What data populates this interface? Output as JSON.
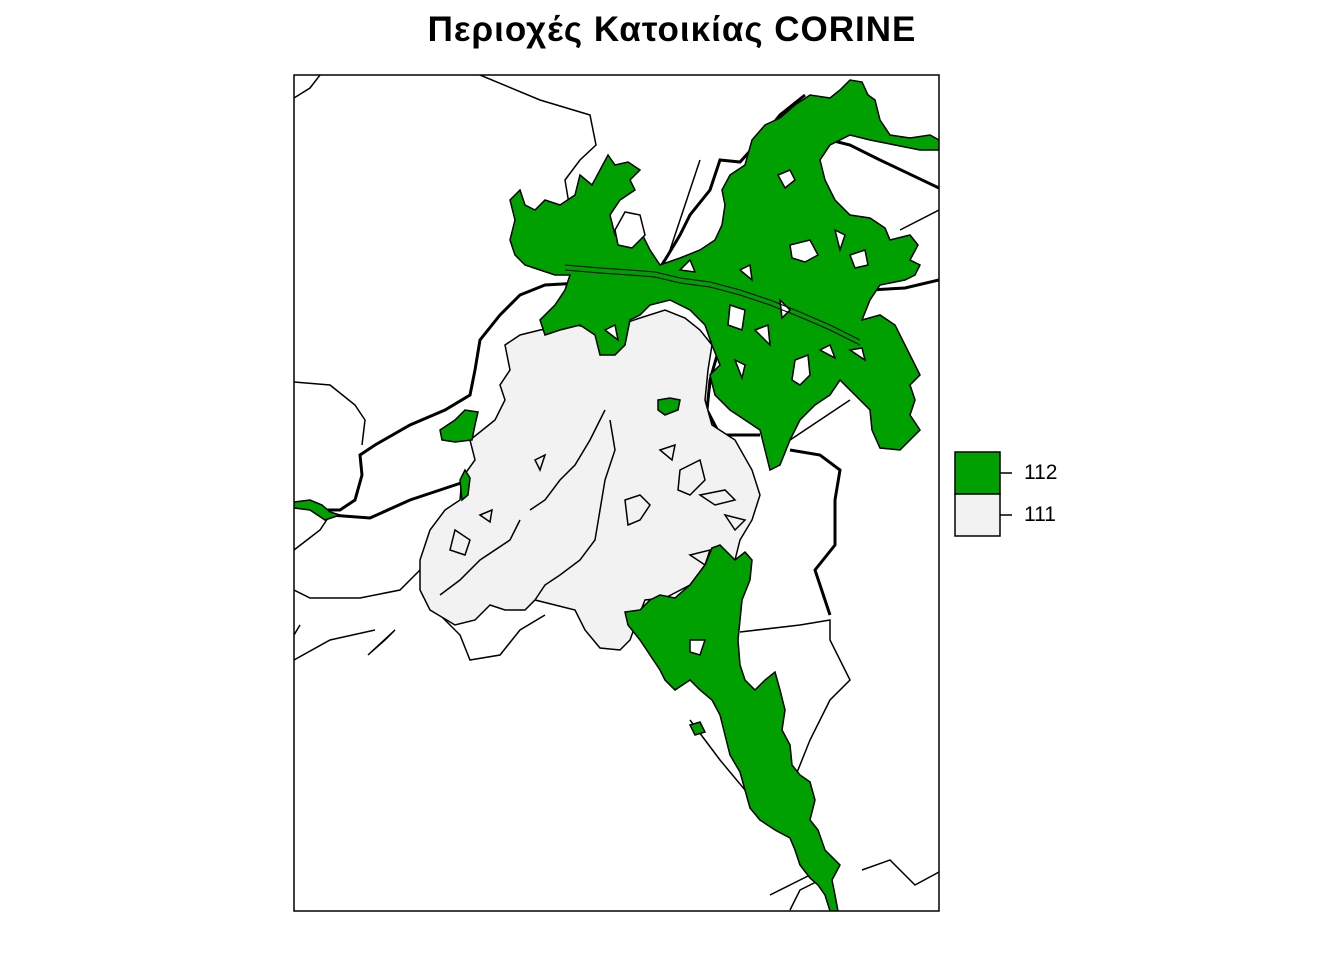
{
  "title": "Περιοχές Κατοικίας  CORINE",
  "legend": {
    "items": [
      {
        "label": "112",
        "color": "#00a000"
      },
      {
        "label": "111",
        "color": "#f2f2f2"
      }
    ]
  },
  "colors": {
    "class_112": "#00a000",
    "class_111": "#f2f2f2",
    "background": "#ffffff",
    "outline": "#000000"
  }
}
